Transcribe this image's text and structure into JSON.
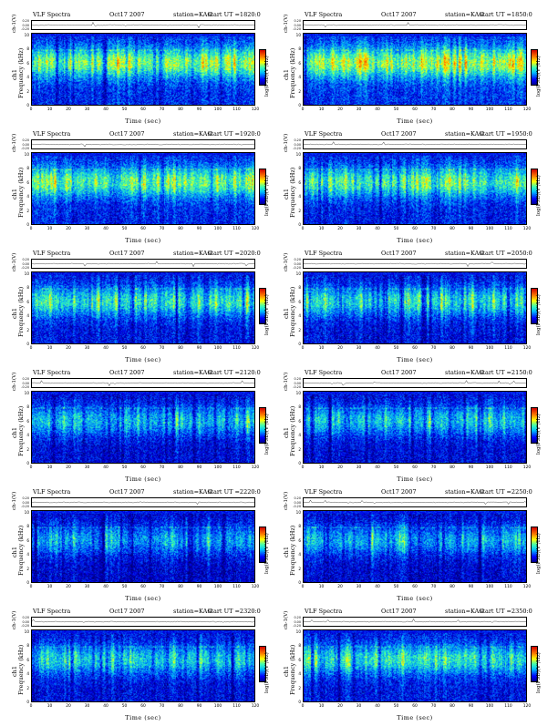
{
  "common": {
    "title": "VLF Spectra",
    "date": "Oct17 2007",
    "station": "station=KAG",
    "start": "start  UT =",
    "xlabel": "Time  (sec)",
    "ylabel": "Frequency  (kHz)",
    "wave_label": "ch-1(V)",
    "channel": "ch1",
    "cbar_label": "log(PSD)(V²/Hz)",
    "wave_ticks": [
      "0.20",
      "0.00",
      "-0.20"
    ],
    "freq_ticks": [
      "10",
      "8",
      "6",
      "4",
      "2",
      "0"
    ],
    "time_ticks": [
      "0",
      "10",
      "20",
      "30",
      "40",
      "50",
      "60",
      "70",
      "80",
      "90",
      "100",
      "110",
      "120"
    ]
  },
  "chart_data": [
    {
      "type": "heatmap",
      "start_time": "1820:0",
      "x_range": [
        0,
        120
      ],
      "y_range": [
        0,
        10
      ],
      "intensity": 0.55
    },
    {
      "type": "heatmap",
      "start_time": "1850:0",
      "x_range": [
        0,
        120
      ],
      "y_range": [
        0,
        10
      ],
      "intensity": 0.6
    },
    {
      "type": "heatmap",
      "start_time": "1920:0",
      "x_range": [
        0,
        120
      ],
      "y_range": [
        0,
        10
      ],
      "intensity": 0.52
    },
    {
      "type": "heatmap",
      "start_time": "1950:0",
      "x_range": [
        0,
        120
      ],
      "y_range": [
        0,
        10
      ],
      "intensity": 0.5
    },
    {
      "type": "heatmap",
      "start_time": "2020:0",
      "x_range": [
        0,
        120
      ],
      "y_range": [
        0,
        10
      ],
      "intensity": 0.45
    },
    {
      "type": "heatmap",
      "start_time": "2050:0",
      "x_range": [
        0,
        120
      ],
      "y_range": [
        0,
        10
      ],
      "intensity": 0.42
    },
    {
      "type": "heatmap",
      "start_time": "2120:0",
      "x_range": [
        0,
        120
      ],
      "y_range": [
        0,
        10
      ],
      "intensity": 0.38
    },
    {
      "type": "heatmap",
      "start_time": "2150:0",
      "x_range": [
        0,
        120
      ],
      "y_range": [
        0,
        10
      ],
      "intensity": 0.38
    },
    {
      "type": "heatmap",
      "start_time": "2220:0",
      "x_range": [
        0,
        120
      ],
      "y_range": [
        0,
        10
      ],
      "intensity": 0.34
    },
    {
      "type": "heatmap",
      "start_time": "2250:0",
      "x_range": [
        0,
        120
      ],
      "y_range": [
        0,
        10
      ],
      "intensity": 0.36
    },
    {
      "type": "heatmap",
      "start_time": "2320:0",
      "x_range": [
        0,
        120
      ],
      "y_range": [
        0,
        10
      ],
      "intensity": 0.4
    },
    {
      "type": "heatmap",
      "start_time": "2350:0",
      "x_range": [
        0,
        120
      ],
      "y_range": [
        0,
        10
      ],
      "intensity": 0.44
    }
  ]
}
